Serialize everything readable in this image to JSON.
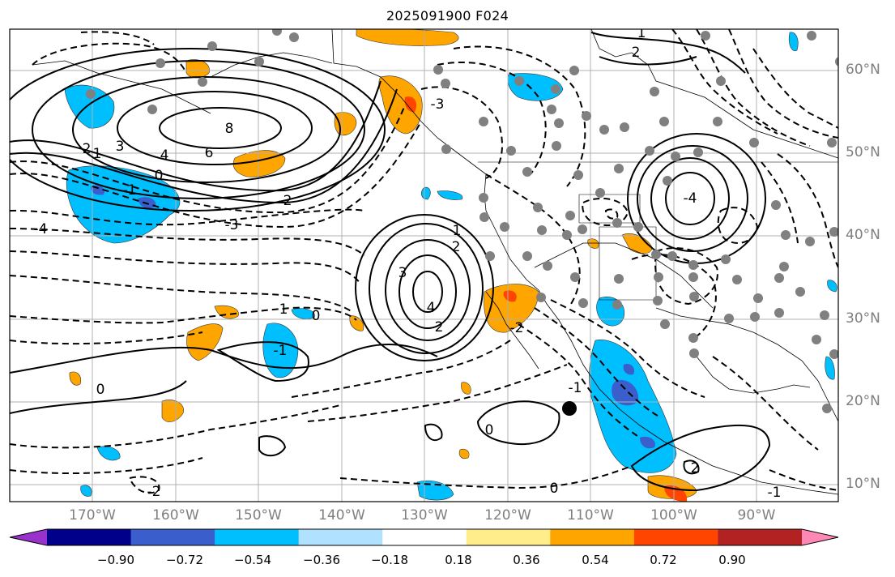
{
  "title": "2025091900 F024",
  "lon_labels": [
    "170°W",
    "160°W",
    "150°W",
    "140°W",
    "130°W",
    "120°W",
    "110°W",
    "100°W",
    "90°W"
  ],
  "lat_labels": [
    "60°N",
    "50°N",
    "40°N",
    "30°N",
    "20°N",
    "10°N"
  ],
  "colorbar": {
    "ticks": [
      "−0.90",
      "−0.72",
      "−0.54",
      "−0.36",
      "−0.18",
      "0.18",
      "0.36",
      "0.54",
      "0.72",
      "0.90"
    ],
    "colors": [
      "#9932cc",
      "#00008b",
      "#3a5fcd",
      "#00bfff",
      "#b0e2ff",
      "#ffffff",
      "#ffec8b",
      "#ffa500",
      "#ff4500",
      "#b22222",
      "#ff89b4"
    ]
  },
  "contour_labels": [
    "8",
    "6",
    "4",
    "3",
    "2",
    "1",
    "0",
    "-1",
    "-2",
    "-3",
    "-4",
    "1",
    "2",
    "3",
    "4",
    "0",
    "-1",
    "-2",
    "-3",
    "-2",
    "-1",
    "0",
    "1",
    "2",
    "-1",
    "0",
    "-2",
    "0",
    "-4",
    "1",
    "2"
  ],
  "colors": {
    "blue_fill": "#00bfff",
    "orange_fill": "#ffa500",
    "station_dot": "#808080",
    "grid": "#b0b0b0"
  }
}
